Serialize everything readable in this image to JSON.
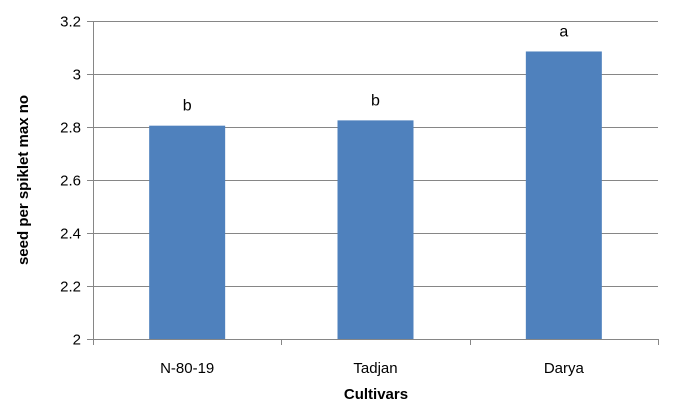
{
  "chart_data": {
    "type": "bar",
    "categories": [
      "N-80-19",
      "Tadjan",
      "Darya"
    ],
    "values": [
      2.805,
      2.825,
      3.085
    ],
    "data_labels": [
      "b",
      "b",
      "a"
    ],
    "title": "",
    "xlabel": "Cultivars",
    "ylabel": "seed per spiklet max no",
    "ylim": [
      2,
      3.2
    ],
    "yticks": [
      "2",
      "2.2",
      "2.4",
      "2.6",
      "2.8",
      "3",
      "3.2"
    ],
    "grid": "horizontal",
    "legend": "none",
    "bar_color": "#4F81BD",
    "grid_color": "#868686",
    "axis_color": "#868686"
  }
}
